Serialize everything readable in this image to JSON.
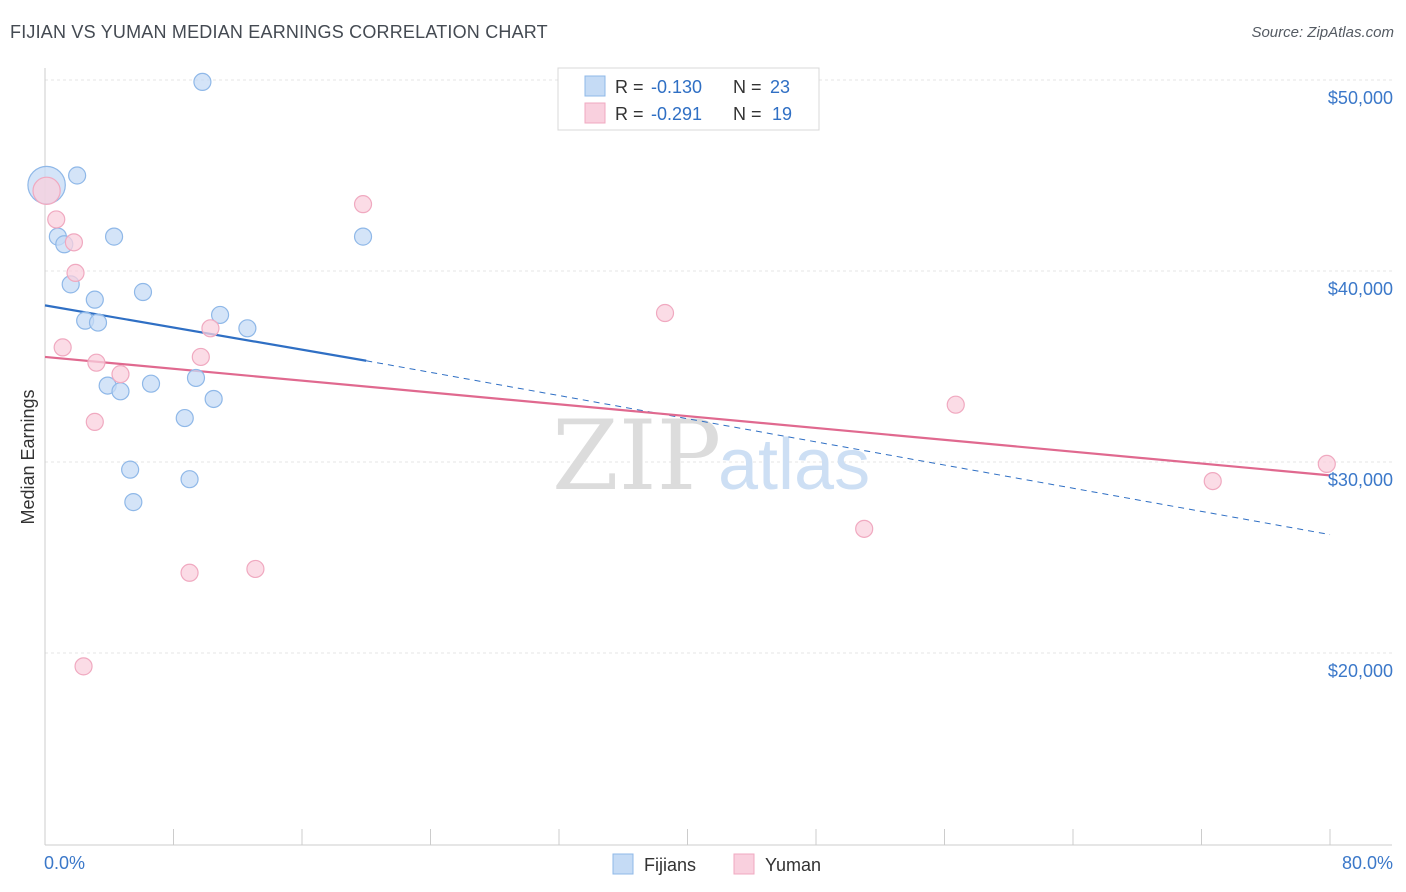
{
  "title": "FIJIAN VS YUMAN MEDIAN EARNINGS CORRELATION CHART",
  "source": "Source: ZipAtlas.com",
  "watermark": {
    "zip": "ZIP",
    "atlas": "atlas"
  },
  "chart_data": {
    "type": "scatter",
    "ylabel": "Median Earnings",
    "xlim": [
      0,
      80
    ],
    "ylim": [
      10000,
      51000
    ],
    "x_tick_labels": [
      "0.0%",
      "80.0%"
    ],
    "y_ticks": [
      {
        "value": 20000,
        "label": "$20,000"
      },
      {
        "value": 30000,
        "label": "$30,000"
      },
      {
        "value": 40000,
        "label": "$40,000"
      },
      {
        "value": 50000,
        "label": "$50,000"
      }
    ],
    "series": [
      {
        "name": "Fijians",
        "color": "#8fb8e8",
        "fill": "#c5dbf5",
        "line_color": "#2f6fc4",
        "R": "-0.130",
        "N": "23",
        "trend": {
          "x0": 0,
          "y0": 38200,
          "x1": 20,
          "y1": 35300,
          "x_dash_end": 80,
          "y_dash_end": 26200
        },
        "points": [
          [
            0.1,
            44500,
            2.2
          ],
          [
            0.8,
            41800,
            1
          ],
          [
            1.2,
            41400,
            1
          ],
          [
            2.0,
            45000,
            1
          ],
          [
            1.6,
            39300,
            1
          ],
          [
            3.1,
            38500,
            1
          ],
          [
            2.5,
            37400,
            1
          ],
          [
            3.3,
            37300,
            1
          ],
          [
            4.3,
            41800,
            1
          ],
          [
            6.1,
            38900,
            1
          ],
          [
            9.8,
            49900,
            1
          ],
          [
            10.9,
            37700,
            1
          ],
          [
            12.6,
            37000,
            1
          ],
          [
            19.8,
            41800,
            1
          ],
          [
            3.9,
            34000,
            1
          ],
          [
            4.7,
            33700,
            1
          ],
          [
            6.6,
            34100,
            1
          ],
          [
            9.4,
            34400,
            1
          ],
          [
            10.5,
            33300,
            1
          ],
          [
            8.7,
            32300,
            1
          ],
          [
            5.3,
            29600,
            1
          ],
          [
            9.0,
            29100,
            1
          ],
          [
            5.5,
            27900,
            1
          ]
        ]
      },
      {
        "name": "Yuman",
        "color": "#f0a9c0",
        "fill": "#f9d0de",
        "line_color": "#e0698f",
        "R": "-0.291",
        "N": "19",
        "trend": {
          "x0": 0,
          "y0": 35500,
          "x1": 80,
          "y1": 29300
        },
        "points": [
          [
            0.1,
            44200,
            1.6
          ],
          [
            0.7,
            42700,
            1
          ],
          [
            1.8,
            41500,
            1
          ],
          [
            1.9,
            39900,
            1
          ],
          [
            1.1,
            36000,
            1
          ],
          [
            3.2,
            35200,
            1
          ],
          [
            4.7,
            34600,
            1
          ],
          [
            10.3,
            37000,
            1
          ],
          [
            9.7,
            35500,
            1
          ],
          [
            3.1,
            32100,
            1
          ],
          [
            19.8,
            43500,
            1
          ],
          [
            38.6,
            37800,
            1
          ],
          [
            56.7,
            33000,
            1
          ],
          [
            51.0,
            26500,
            1
          ],
          [
            9.0,
            24200,
            1
          ],
          [
            13.1,
            24400,
            1
          ],
          [
            2.4,
            19300,
            1
          ],
          [
            72.7,
            29000,
            1
          ],
          [
            79.8,
            29900,
            1
          ]
        ]
      }
    ]
  }
}
